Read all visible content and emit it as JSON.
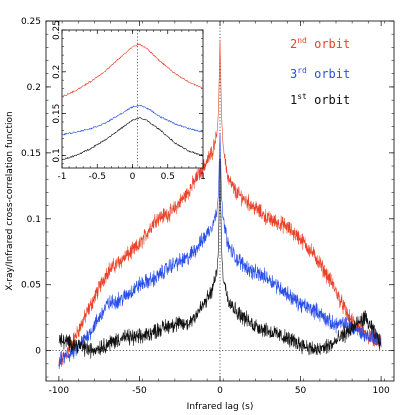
{
  "chart_data": [
    {
      "type": "line",
      "xlabel": "Infrared lag (s)",
      "ylabel": "X-ray/Infrared cross-correlation function",
      "xlim": [
        -108,
        108
      ],
      "ylim": [
        -0.023,
        0.25
      ],
      "x_ticks": [
        "-100",
        "-50",
        "0",
        "50",
        "100"
      ],
      "y_ticks": [
        "0",
        "0.05",
        "0.1",
        "0.15",
        "0.2",
        "0.25"
      ],
      "grid": false,
      "reference_lines": {
        "x": 0,
        "y": 0,
        "style": "dotted"
      },
      "legend_position": "top-right",
      "series": [
        {
          "name": "2nd orbit",
          "color": "#e8432a",
          "x": [
            -100,
            -90,
            -80,
            -70,
            -60,
            -50,
            -40,
            -30,
            -20,
            -10,
            -5,
            -2,
            -1,
            0,
            1,
            2,
            5,
            10,
            20,
            30,
            40,
            50,
            60,
            70,
            80,
            90,
            100
          ],
          "values": [
            -0.012,
            0.01,
            0.035,
            0.06,
            0.07,
            0.08,
            0.1,
            0.105,
            0.12,
            0.14,
            0.15,
            0.165,
            0.18,
            0.235,
            0.175,
            0.155,
            0.13,
            0.12,
            0.11,
            0.1,
            0.095,
            0.085,
            0.07,
            0.05,
            0.025,
            0.012,
            0.005
          ]
        },
        {
          "name": "3rd orbit",
          "color": "#2a4ee8",
          "x": [
            -100,
            -90,
            -80,
            -70,
            -60,
            -50,
            -40,
            -30,
            -20,
            -10,
            -5,
            -2,
            -1,
            0,
            1,
            2,
            5,
            10,
            20,
            30,
            40,
            50,
            60,
            70,
            80,
            90,
            100
          ],
          "values": [
            -0.008,
            0.0,
            0.015,
            0.035,
            0.04,
            0.05,
            0.055,
            0.065,
            0.07,
            0.085,
            0.095,
            0.105,
            0.12,
            0.165,
            0.115,
            0.1,
            0.08,
            0.07,
            0.06,
            0.055,
            0.045,
            0.035,
            0.03,
            0.02,
            0.02,
            0.012,
            0.008
          ]
        },
        {
          "name": "1st orbit",
          "color": "#111111",
          "x": [
            -100,
            -90,
            -80,
            -70,
            -60,
            -50,
            -40,
            -30,
            -20,
            -10,
            -5,
            -2,
            -1,
            0,
            1,
            2,
            5,
            10,
            20,
            30,
            40,
            50,
            60,
            70,
            80,
            90,
            100
          ],
          "values": [
            0.008,
            0.005,
            0.0,
            0.005,
            0.01,
            0.01,
            0.015,
            0.02,
            0.02,
            0.035,
            0.045,
            0.06,
            0.075,
            0.145,
            0.075,
            0.055,
            0.04,
            0.03,
            0.02,
            0.015,
            0.01,
            0.005,
            0.0,
            0.005,
            0.015,
            0.025,
            0.005
          ]
        }
      ]
    },
    {
      "type": "line",
      "xlim": [
        -1,
        1
      ],
      "ylim": [
        0.085,
        0.25
      ],
      "x_ticks": [
        "-1",
        "-0.5",
        "0",
        "0.5",
        "1"
      ],
      "y_ticks": [
        "0.1",
        "0.15",
        "0.2",
        "0.25"
      ],
      "reference_lines": {
        "x": 0.07,
        "style": "dotted"
      },
      "series": [
        {
          "name": "2nd orbit",
          "color": "#e8432a",
          "x": [
            -1,
            -0.8,
            -0.6,
            -0.4,
            -0.2,
            0,
            0.1,
            0.2,
            0.4,
            0.6,
            0.8,
            1
          ],
          "values": [
            0.17,
            0.178,
            0.188,
            0.2,
            0.215,
            0.23,
            0.233,
            0.228,
            0.212,
            0.198,
            0.188,
            0.18
          ]
        },
        {
          "name": "3rd orbit",
          "color": "#2a4ee8",
          "x": [
            -1,
            -0.8,
            -0.6,
            -0.4,
            -0.2,
            0,
            0.1,
            0.2,
            0.4,
            0.6,
            0.8,
            1
          ],
          "values": [
            0.125,
            0.128,
            0.132,
            0.138,
            0.148,
            0.158,
            0.16,
            0.157,
            0.146,
            0.138,
            0.132,
            0.128
          ]
        },
        {
          "name": "1st orbit",
          "color": "#111111",
          "x": [
            -1,
            -0.8,
            -0.6,
            -0.4,
            -0.2,
            0,
            0.1,
            0.2,
            0.4,
            0.6,
            0.8,
            1
          ],
          "values": [
            0.095,
            0.1,
            0.108,
            0.118,
            0.13,
            0.142,
            0.145,
            0.142,
            0.13,
            0.115,
            0.105,
            0.1
          ]
        }
      ]
    }
  ],
  "legend": {
    "items": [
      {
        "prefix": "2",
        "sup": "nd",
        "suffix": " orbit",
        "color": "#e8432a"
      },
      {
        "prefix": "3",
        "sup": "rd",
        "suffix": " orbit",
        "color": "#2a4ee8"
      },
      {
        "prefix": "1",
        "sup": "st",
        "suffix": " orbit",
        "color": "#111111"
      }
    ]
  }
}
